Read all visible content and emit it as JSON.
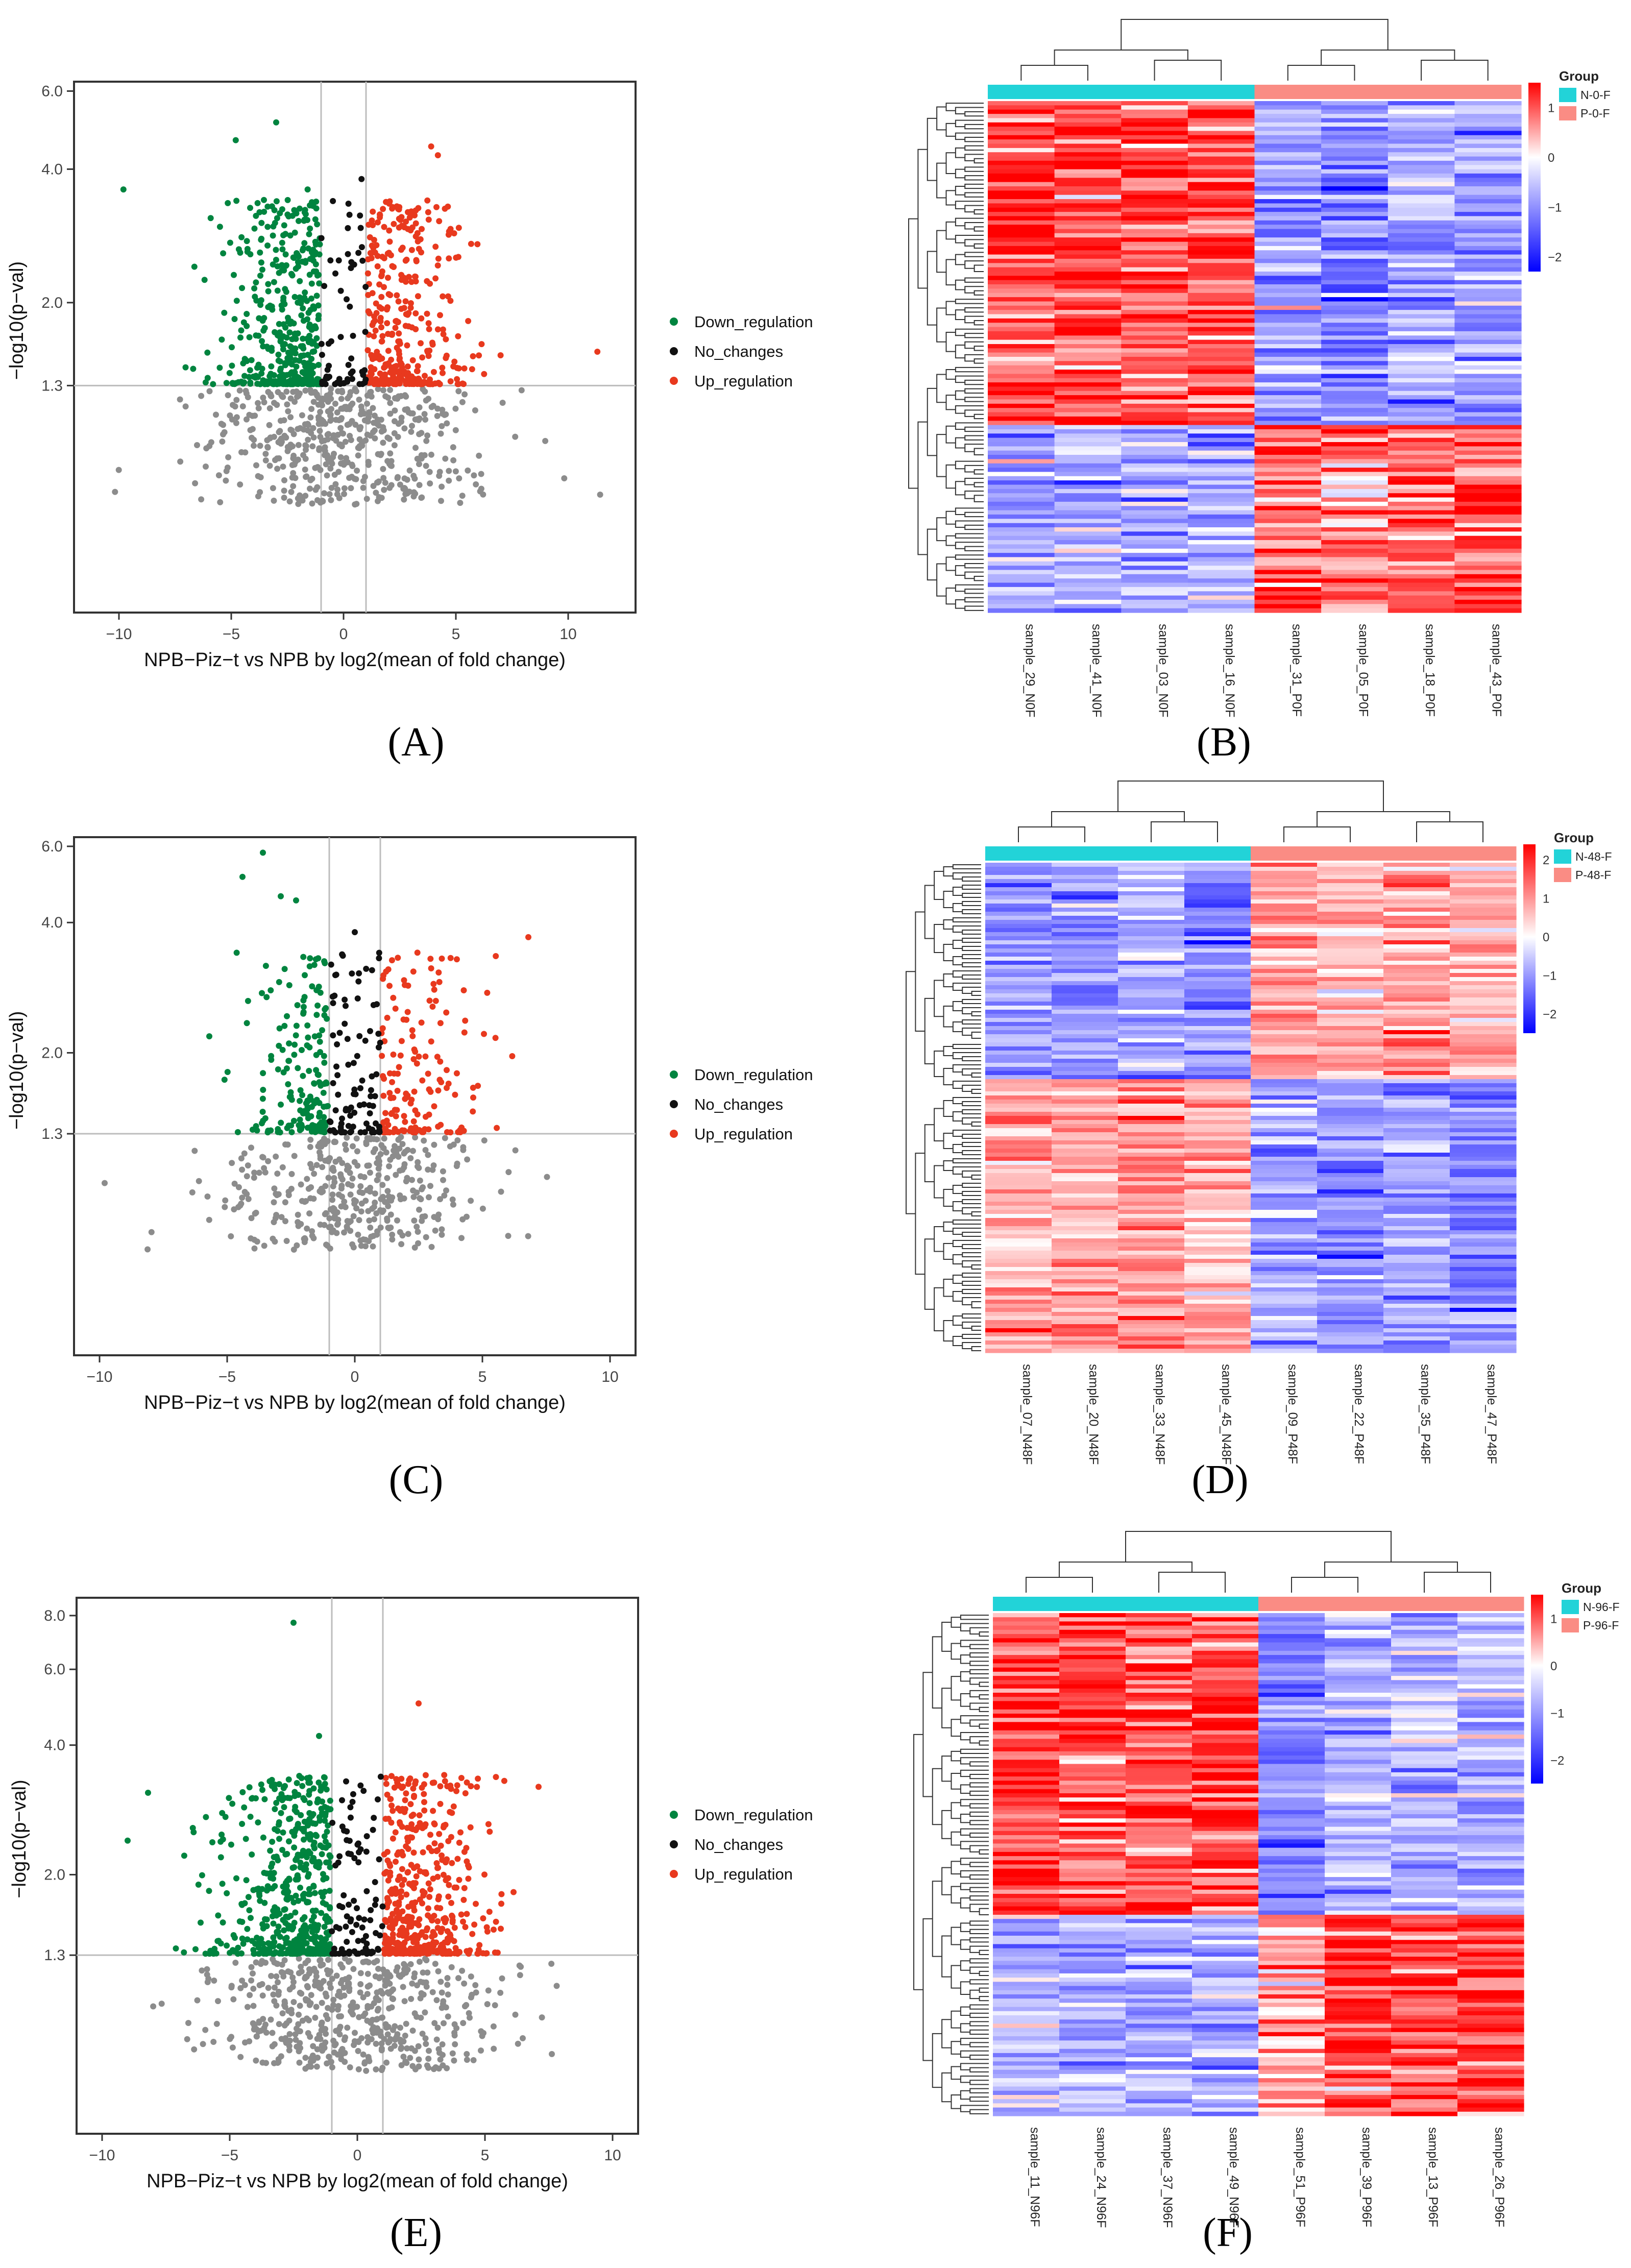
{
  "figure": {
    "panel_labels": [
      "A",
      "B",
      "C",
      "D",
      "E",
      "F"
    ]
  },
  "colors": {
    "down": "#00843f",
    "nochange": "#111111",
    "up": "#e8391e",
    "insig": "#8c8c8c",
    "heat_high": "#ff0000",
    "heat_mid": "#ffffff",
    "heat_low": "#0000ff",
    "group_n": "#22d3d8",
    "group_p": "#fa8c84"
  },
  "chart_data": [
    {
      "type": "scatter",
      "panel": "A",
      "title": "",
      "xlabel": "NPB−Piz−t vs NPB by log2(mean of fold change)",
      "ylabel": "−log10(p−val)",
      "xlim": [
        -12,
        13
      ],
      "ylim": [
        0.4,
        6.3
      ],
      "x_ticks": [
        "−10",
        "−5",
        "0",
        "5",
        "10"
      ],
      "x_tick_values": [
        -10,
        -5,
        0,
        5,
        10
      ],
      "y_ticks": [
        "1.3",
        "2.0",
        "4.0",
        "6.0"
      ],
      "y_tick_values": [
        1.3,
        2.0,
        4.0,
        6.0
      ],
      "y_scale": "log",
      "fc_cutoff": 1,
      "p_cutoff": 1.3,
      "legend": [
        "Down_regulation",
        "No_changes",
        "Up_regulation"
      ],
      "legend_position": "right",
      "highlight_points": [
        [
          -9.8,
          3.6
        ],
        [
          -3.0,
          5.1
        ],
        [
          -4.8,
          4.65
        ],
        [
          3.9,
          4.5
        ],
        [
          4.2,
          4.3
        ],
        [
          11.3,
          1.55
        ],
        [
          -1.6,
          3.6
        ],
        [
          0.8,
          3.8
        ]
      ],
      "counts": {
        "down": 430,
        "nochange": 60,
        "up": 350,
        "insig": 500
      },
      "spread": {
        "sig_x_sd": 2.1,
        "insig_x_sd": 3.0
      }
    },
    {
      "type": "heatmap",
      "panel": "B",
      "samples": [
        "sample_29_N0F",
        "sample_41_N0F",
        "sample_03_N0F",
        "sample_16_N0F",
        "sample_31_P0F",
        "sample_05_P0F",
        "sample_18_P0F",
        "sample_43_P0F"
      ],
      "groups": [
        "N-0-F",
        "P-0-F"
      ],
      "legend_title": "Group",
      "scale_ticks": [
        "1",
        "0",
        "−1",
        "−2"
      ],
      "scale_values": [
        1,
        0,
        -1,
        -2
      ],
      "scale_range": [
        -2.3,
        1.5
      ],
      "rows": 120,
      "top_block_fraction": 0.63,
      "pattern": "N_high_top"
    },
    {
      "type": "scatter",
      "panel": "C",
      "title": "",
      "xlabel": "NPB−Piz−t vs NPB by log2(mean of fold change)",
      "ylabel": "−log10(p−val)",
      "xlim": [
        -11,
        11
      ],
      "ylim": [
        0.4,
        6.3
      ],
      "x_ticks": [
        "−10",
        "−5",
        "0",
        "5",
        "10"
      ],
      "x_tick_values": [
        -10,
        -5,
        0,
        5,
        10
      ],
      "y_ticks": [
        "1.3",
        "2.0",
        "4.0",
        "6.0"
      ],
      "y_tick_values": [
        1.3,
        2.0,
        4.0,
        6.0
      ],
      "y_scale": "log",
      "fc_cutoff": 1,
      "p_cutoff": 1.3,
      "legend": [
        "Down_regulation",
        "No_changes",
        "Up_regulation"
      ],
      "legend_position": "right",
      "highlight_points": [
        [
          -3.6,
          5.8
        ],
        [
          -4.4,
          5.1
        ],
        [
          -2.9,
          4.6
        ],
        [
          -2.3,
          4.5
        ],
        [
          6.8,
          3.7
        ],
        [
          0.0,
          3.8
        ],
        [
          -9.8,
          1.0
        ]
      ],
      "counts": {
        "down": 170,
        "nochange": 90,
        "up": 150,
        "insig": 380
      },
      "spread": {
        "sig_x_sd": 1.7,
        "insig_x_sd": 2.4
      }
    },
    {
      "type": "heatmap",
      "panel": "D",
      "samples": [
        "sample_07_N48F",
        "sample_20_N48F",
        "sample_33_N48F",
        "sample_45_N48F",
        "sample_09_P48F",
        "sample_22_P48F",
        "sample_35_P48F",
        "sample_47_P48F"
      ],
      "groups": [
        "N-48-F",
        "P-48-F"
      ],
      "legend_title": "Group",
      "scale_ticks": [
        "2",
        "1",
        "0",
        "−1",
        "−2"
      ],
      "scale_values": [
        2,
        1,
        0,
        -1,
        -2
      ],
      "scale_range": [
        -2.5,
        2.4
      ],
      "rows": 120,
      "top_block_fraction": 0.44,
      "pattern": "N_low_top"
    },
    {
      "type": "scatter",
      "panel": "E",
      "title": "",
      "xlabel": "NPB−Piz−t vs NPB by log2(mean of fold change)",
      "ylabel": "−log10(p−val)",
      "xlim": [
        -11,
        11
      ],
      "ylim": [
        0.5,
        8.8
      ],
      "x_ticks": [
        "−10",
        "−5",
        "0",
        "5",
        "10"
      ],
      "x_tick_values": [
        -10,
        -5,
        0,
        5,
        10
      ],
      "y_ticks": [
        "1.3",
        "2.0",
        "4.0",
        "6.0",
        "8.0"
      ],
      "y_tick_values": [
        1.3,
        2.0,
        4.0,
        6.0,
        8.0
      ],
      "y_scale": "log",
      "fc_cutoff": 1,
      "p_cutoff": 1.3,
      "legend": [
        "Down_regulation",
        "No_changes",
        "Up_regulation"
      ],
      "legend_position": "right",
      "highlight_points": [
        [
          -2.5,
          7.7
        ],
        [
          2.4,
          5.0
        ],
        [
          7.1,
          3.2
        ],
        [
          -8.2,
          3.1
        ],
        [
          -9.0,
          2.4
        ],
        [
          -1.5,
          4.2
        ]
      ],
      "counts": {
        "down": 520,
        "nochange": 90,
        "up": 460,
        "insig": 520
      },
      "spread": {
        "sig_x_sd": 1.9,
        "insig_x_sd": 2.8
      }
    },
    {
      "type": "heatmap",
      "panel": "F",
      "samples": [
        "sample_11_N96F",
        "sample_24_N96F",
        "sample_37_N96F",
        "sample_49_N96F",
        "sample_51_P96F",
        "sample_39_P96F",
        "sample_13_P96F",
        "sample_26_P96F"
      ],
      "groups": [
        "N-96-F",
        "P-96-F"
      ],
      "legend_title": "Group",
      "scale_ticks": [
        "1",
        "0",
        "−1",
        "−2"
      ],
      "scale_values": [
        1,
        0,
        -1,
        -2
      ],
      "scale_range": [
        -2.5,
        1.5
      ],
      "rows": 120,
      "top_block_fraction": 0.6,
      "pattern": "N_high_top"
    }
  ]
}
